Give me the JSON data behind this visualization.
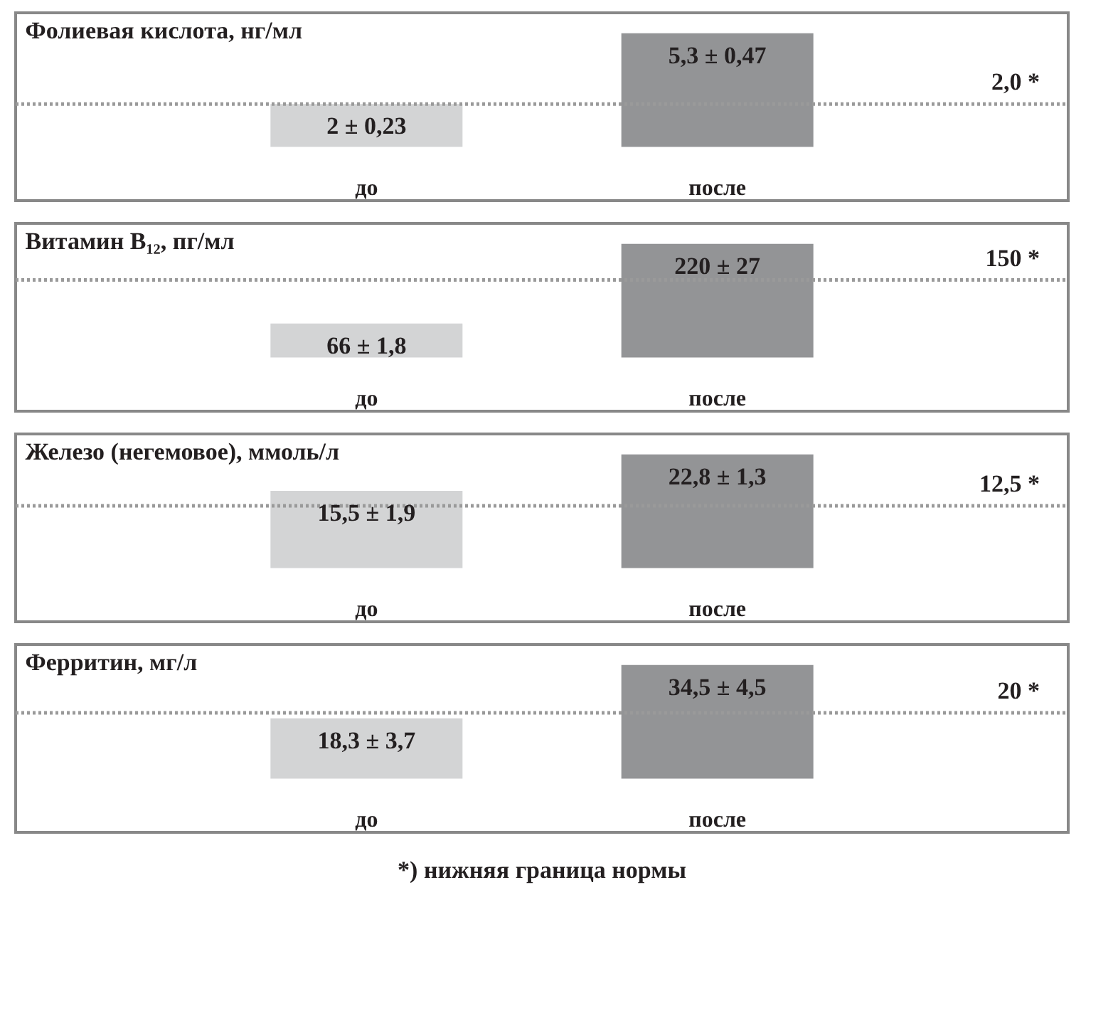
{
  "chart_data": [
    {
      "type": "bar",
      "title": "Фолиевая кислота, нг/мл",
      "categories": [
        "до",
        "после"
      ],
      "values": [
        2,
        5.3
      ],
      "colors": [
        "#d3d4d5",
        "#939496"
      ],
      "value_labels": [
        "2 ± 0,23",
        "5,3 ± 0,47"
      ],
      "ref_lines": [
        {
          "axis": "y",
          "value": 2.0,
          "label": "2,0 *",
          "color": "#9a9a9a",
          "line_style": "dotted"
        }
      ]
    },
    {
      "type": "bar",
      "title": "Витамин B₁₂, пг/мл",
      "categories": [
        "до",
        "после"
      ],
      "values": [
        66,
        220
      ],
      "colors": [
        "#d3d4d5",
        "#939496"
      ],
      "value_labels": [
        "66 ± 1,8",
        "220 ± 27"
      ],
      "ref_lines": [
        {
          "axis": "y",
          "value": 150,
          "label": "150 *",
          "color": "#9a9a9a",
          "line_style": "dotted"
        }
      ]
    },
    {
      "type": "bar",
      "title": "Железо (негемовое), ммоль/л",
      "categories": [
        "до",
        "после"
      ],
      "values": [
        15.5,
        22.8
      ],
      "colors": [
        "#d3d4d5",
        "#939496"
      ],
      "value_labels": [
        "15,5 ± 1,9",
        "22,8 ± 1,3"
      ],
      "ref_lines": [
        {
          "axis": "y",
          "value": 12.5,
          "label": "12,5 *",
          "color": "#9a9a9a",
          "line_style": "dotted"
        }
      ]
    },
    {
      "type": "bar",
      "title": "Ферритин, мг/л",
      "categories": [
        "до",
        "после"
      ],
      "values": [
        18.3,
        34.5
      ],
      "colors": [
        "#d3d4d5",
        "#939496"
      ],
      "value_labels": [
        "18,3 ± 3,7",
        "34,5 ± 4,5"
      ],
      "ref_lines": [
        {
          "axis": "y",
          "value": 20,
          "label": "20 *",
          "color": "#9a9a9a",
          "line_style": "dotted"
        }
      ],
      "annotations": [
        "*) нижняя граница нормы"
      ]
    }
  ]
}
